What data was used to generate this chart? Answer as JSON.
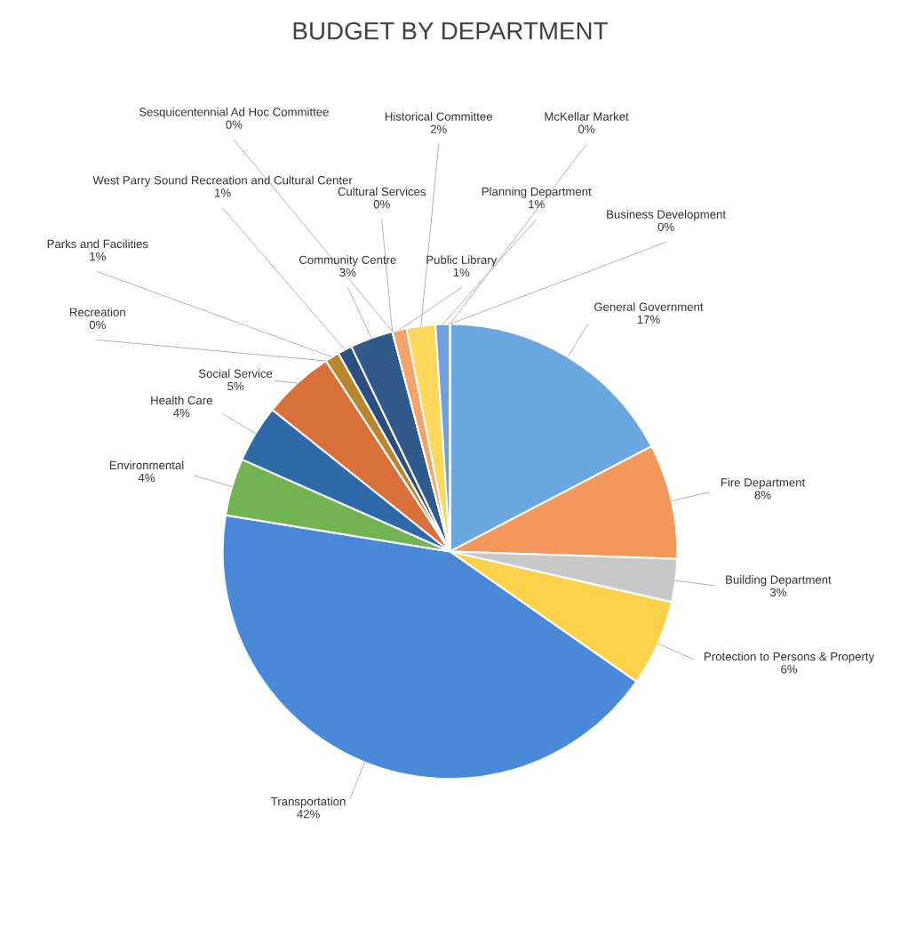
{
  "chart_data": {
    "type": "pie",
    "title": "BUDGET BY DEPARTMENT",
    "categories": [
      "General Government",
      "Fire Department",
      "Building Department",
      "Protection to Persons & Property",
      "Transportation",
      "Environmental",
      "Health Care",
      "Social Service",
      "Recreation",
      "Parks and Facilities",
      "West Parry Sound Recreation and Cultural Center",
      "Community Centre",
      "Sesquicentennial Ad Hoc Committee",
      "Cultural Services",
      "Public Library",
      "Historical Committee",
      "Planning Department",
      "Business Development",
      "McKellar Market"
    ],
    "values": [
      17,
      8,
      3,
      6,
      42,
      4,
      4,
      5,
      0,
      1,
      1,
      3,
      0,
      0,
      1,
      2,
      1,
      0,
      0
    ],
    "value_labels": [
      "17%",
      "8%",
      "3%",
      "6%",
      "42%",
      "4%",
      "4%",
      "5%",
      "0%",
      "1%",
      "1%",
      "3%",
      "0%",
      "0%",
      "1%",
      "2%",
      "1%",
      "0%",
      "0%"
    ],
    "colors": [
      "#6aa7e0",
      "#f4975c",
      "#c8c8c8",
      "#fcd24a",
      "#4a89d8",
      "#72b452",
      "#2f6aa8",
      "#d9703a",
      "#6b6b6b",
      "#b8862e",
      "#2a4f80",
      "#2f5a8a",
      "#43682b",
      "#7cafdd",
      "#f4a46a",
      "#fdd85a",
      "#6fa0dc",
      "#2e5c8a",
      "#5b9bd5"
    ],
    "legend": false
  }
}
